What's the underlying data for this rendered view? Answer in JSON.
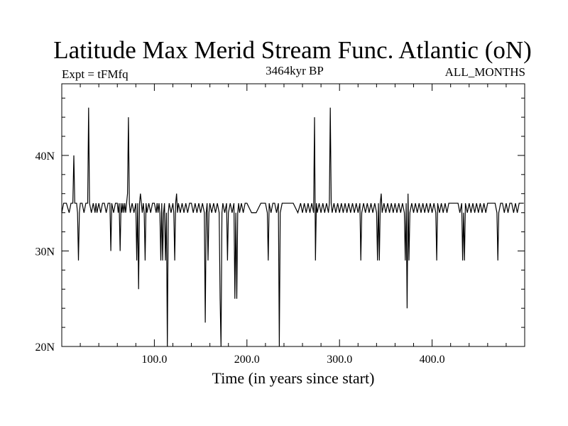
{
  "chart_data": {
    "type": "line",
    "title": "Latitude Max Merid Stream Func. Atlantic (oN)",
    "left_label": "Expt = tFMfq",
    "center_label": "3464kyr BP",
    "right_label": "ALL_MONTHS",
    "xlabel": "Time (in years since start)",
    "ylabel": "",
    "xlim": [
      0,
      500
    ],
    "ylim": [
      20,
      47.5
    ],
    "x_ticks": [
      100,
      200,
      300,
      400
    ],
    "x_tick_labels": [
      "100.0",
      "200.0",
      "300.0",
      "400.0"
    ],
    "y_ticks": [
      20,
      30,
      40
    ],
    "y_tick_labels": [
      "20N",
      "30N",
      "40N"
    ],
    "grid": false,
    "series": [
      {
        "name": "",
        "color": "#000000",
        "points": [
          [
            0,
            34
          ],
          [
            2,
            35
          ],
          [
            5,
            35
          ],
          [
            8,
            34
          ],
          [
            10,
            35
          ],
          [
            12,
            35
          ],
          [
            13,
            40
          ],
          [
            14,
            35
          ],
          [
            16,
            35
          ],
          [
            17,
            34
          ],
          [
            18,
            29
          ],
          [
            19,
            34
          ],
          [
            20,
            35
          ],
          [
            22,
            35
          ],
          [
            24,
            34
          ],
          [
            26,
            35
          ],
          [
            28,
            35
          ],
          [
            29,
            45
          ],
          [
            30,
            35
          ],
          [
            32,
            34
          ],
          [
            34,
            35
          ],
          [
            36,
            34
          ],
          [
            37,
            35
          ],
          [
            38,
            34
          ],
          [
            40,
            35
          ],
          [
            42,
            34
          ],
          [
            44,
            35
          ],
          [
            46,
            35
          ],
          [
            48,
            34
          ],
          [
            50,
            35
          ],
          [
            52,
            35
          ],
          [
            53,
            30
          ],
          [
            54,
            35
          ],
          [
            56,
            34
          ],
          [
            58,
            35
          ],
          [
            60,
            35
          ],
          [
            61,
            34
          ],
          [
            62,
            35
          ],
          [
            63,
            30
          ],
          [
            64,
            35
          ],
          [
            65,
            34
          ],
          [
            66,
            35
          ],
          [
            67,
            34
          ],
          [
            68,
            35
          ],
          [
            69,
            34
          ],
          [
            70,
            35
          ],
          [
            71,
            36
          ],
          [
            72,
            44
          ],
          [
            73,
            35
          ],
          [
            74,
            34
          ],
          [
            76,
            35
          ],
          [
            78,
            34
          ],
          [
            80,
            35
          ],
          [
            81,
            29
          ],
          [
            82,
            35
          ],
          [
            83,
            26
          ],
          [
            84,
            35
          ],
          [
            85,
            36
          ],
          [
            86,
            35
          ],
          [
            87,
            34
          ],
          [
            88,
            35
          ],
          [
            89,
            34
          ],
          [
            90,
            29
          ],
          [
            91,
            35
          ],
          [
            92,
            34
          ],
          [
            94,
            35
          ],
          [
            96,
            34
          ],
          [
            98,
            35
          ],
          [
            100,
            35
          ],
          [
            102,
            34
          ],
          [
            103,
            35
          ],
          [
            104,
            34
          ],
          [
            105,
            35
          ],
          [
            106,
            34
          ],
          [
            107,
            29
          ],
          [
            108,
            35
          ],
          [
            109,
            29
          ],
          [
            110,
            34
          ],
          [
            111,
            35
          ],
          [
            112,
            29
          ],
          [
            113,
            34
          ],
          [
            114,
            20
          ],
          [
            115,
            34
          ],
          [
            116,
            35
          ],
          [
            118,
            34
          ],
          [
            120,
            35
          ],
          [
            121,
            34
          ],
          [
            122,
            29
          ],
          [
            123,
            35
          ],
          [
            124,
            36
          ],
          [
            125,
            34
          ],
          [
            126,
            35
          ],
          [
            128,
            34
          ],
          [
            130,
            35
          ],
          [
            132,
            34
          ],
          [
            134,
            35
          ],
          [
            136,
            34
          ],
          [
            138,
            35
          ],
          [
            140,
            35
          ],
          [
            142,
            34
          ],
          [
            144,
            35
          ],
          [
            146,
            34
          ],
          [
            148,
            35
          ],
          [
            150,
            34
          ],
          [
            152,
            35
          ],
          [
            154,
            34
          ],
          [
            155,
            22.5
          ],
          [
            156,
            34
          ],
          [
            157,
            35
          ],
          [
            158,
            29
          ],
          [
            159,
            34
          ],
          [
            160,
            35
          ],
          [
            162,
            34
          ],
          [
            164,
            35
          ],
          [
            166,
            34
          ],
          [
            168,
            35
          ],
          [
            170,
            34
          ],
          [
            171,
            25
          ],
          [
            172,
            20
          ],
          [
            173,
            34
          ],
          [
            174,
            35
          ],
          [
            176,
            34
          ],
          [
            178,
            35
          ],
          [
            179,
            29
          ],
          [
            180,
            34
          ],
          [
            182,
            35
          ],
          [
            184,
            34
          ],
          [
            186,
            35
          ],
          [
            187,
            25
          ],
          [
            188,
            34
          ],
          [
            189,
            25
          ],
          [
            190,
            34
          ],
          [
            191,
            35
          ],
          [
            192,
            34
          ],
          [
            194,
            35
          ],
          [
            196,
            34
          ],
          [
            198,
            35
          ],
          [
            200,
            35
          ],
          [
            205,
            34
          ],
          [
            210,
            34
          ],
          [
            215,
            35
          ],
          [
            220,
            35
          ],
          [
            222,
            34
          ],
          [
            223,
            29
          ],
          [
            224,
            35
          ],
          [
            226,
            34
          ],
          [
            228,
            35
          ],
          [
            230,
            35
          ],
          [
            232,
            34
          ],
          [
            234,
            35
          ],
          [
            235,
            20
          ],
          [
            236,
            34
          ],
          [
            238,
            35
          ],
          [
            240,
            35
          ],
          [
            245,
            35
          ],
          [
            250,
            35
          ],
          [
            255,
            34
          ],
          [
            258,
            35
          ],
          [
            260,
            34
          ],
          [
            262,
            35
          ],
          [
            264,
            34
          ],
          [
            266,
            35
          ],
          [
            268,
            34
          ],
          [
            270,
            35
          ],
          [
            272,
            34
          ],
          [
            273,
            44
          ],
          [
            274,
            29
          ],
          [
            275,
            35
          ],
          [
            276,
            34
          ],
          [
            278,
            35
          ],
          [
            280,
            34
          ],
          [
            282,
            35
          ],
          [
            284,
            34
          ],
          [
            286,
            35
          ],
          [
            288,
            34
          ],
          [
            289,
            35
          ],
          [
            290,
            45
          ],
          [
            291,
            35
          ],
          [
            292,
            34
          ],
          [
            294,
            35
          ],
          [
            296,
            34
          ],
          [
            298,
            35
          ],
          [
            300,
            34
          ],
          [
            302,
            35
          ],
          [
            304,
            34
          ],
          [
            306,
            35
          ],
          [
            308,
            34
          ],
          [
            310,
            35
          ],
          [
            312,
            34
          ],
          [
            314,
            35
          ],
          [
            316,
            34
          ],
          [
            318,
            35
          ],
          [
            320,
            34
          ],
          [
            322,
            35
          ],
          [
            323,
            29
          ],
          [
            324,
            34
          ],
          [
            326,
            35
          ],
          [
            328,
            34
          ],
          [
            330,
            35
          ],
          [
            332,
            34
          ],
          [
            334,
            35
          ],
          [
            336,
            34
          ],
          [
            338,
            35
          ],
          [
            340,
            34
          ],
          [
            341,
            29
          ],
          [
            342,
            35
          ],
          [
            343,
            29
          ],
          [
            344,
            35
          ],
          [
            345,
            36
          ],
          [
            346,
            34
          ],
          [
            348,
            35
          ],
          [
            350,
            34
          ],
          [
            352,
            35
          ],
          [
            354,
            34
          ],
          [
            356,
            35
          ],
          [
            358,
            34
          ],
          [
            360,
            35
          ],
          [
            362,
            34
          ],
          [
            364,
            35
          ],
          [
            366,
            34
          ],
          [
            368,
            35
          ],
          [
            370,
            34
          ],
          [
            371,
            29
          ],
          [
            372,
            35
          ],
          [
            373,
            24
          ],
          [
            374,
            36
          ],
          [
            375,
            29
          ],
          [
            376,
            34
          ],
          [
            378,
            35
          ],
          [
            380,
            34
          ],
          [
            382,
            35
          ],
          [
            384,
            34
          ],
          [
            386,
            35
          ],
          [
            388,
            34
          ],
          [
            390,
            35
          ],
          [
            392,
            34
          ],
          [
            394,
            35
          ],
          [
            396,
            34
          ],
          [
            398,
            35
          ],
          [
            400,
            34
          ],
          [
            402,
            35
          ],
          [
            404,
            34
          ],
          [
            405,
            29
          ],
          [
            406,
            35
          ],
          [
            408,
            34
          ],
          [
            410,
            35
          ],
          [
            412,
            34
          ],
          [
            414,
            35
          ],
          [
            416,
            34
          ],
          [
            418,
            35
          ],
          [
            420,
            35
          ],
          [
            424,
            35
          ],
          [
            428,
            35
          ],
          [
            430,
            34
          ],
          [
            432,
            35
          ],
          [
            433,
            29
          ],
          [
            434,
            34
          ],
          [
            435,
            29
          ],
          [
            436,
            35
          ],
          [
            438,
            34
          ],
          [
            440,
            35
          ],
          [
            442,
            34
          ],
          [
            444,
            35
          ],
          [
            446,
            34
          ],
          [
            448,
            35
          ],
          [
            450,
            34
          ],
          [
            452,
            35
          ],
          [
            454,
            34
          ],
          [
            456,
            35
          ],
          [
            458,
            34
          ],
          [
            460,
            35
          ],
          [
            462,
            35
          ],
          [
            465,
            35
          ],
          [
            468,
            35
          ],
          [
            470,
            34
          ],
          [
            471,
            29
          ],
          [
            472,
            34
          ],
          [
            474,
            35
          ],
          [
            476,
            35
          ],
          [
            478,
            34
          ],
          [
            480,
            35
          ],
          [
            482,
            34
          ],
          [
            484,
            35
          ],
          [
            486,
            35
          ],
          [
            488,
            34
          ],
          [
            490,
            35
          ],
          [
            492,
            34
          ],
          [
            494,
            35
          ],
          [
            496,
            35
          ],
          [
            499,
            35
          ]
        ]
      }
    ]
  }
}
